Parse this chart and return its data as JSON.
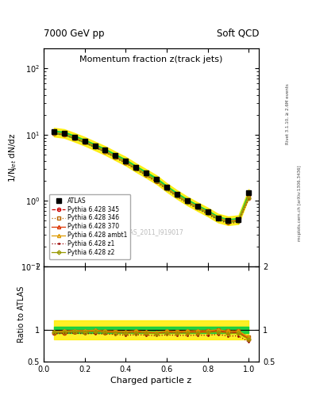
{
  "title_top_left": "7000 GeV pp",
  "title_top_right": "Soft QCD",
  "plot_title": "Momentum fraction z(track jets)",
  "ylabel_main": "1/N$_{jet}$ dN/dz",
  "ylabel_ratio": "Ratio to ATLAS",
  "xlabel": "Charged particle z",
  "right_label_top": "Rivet 3.1.10, ≥ 2.6M events",
  "right_label_bottom": "mcplots.cern.ch [arXiv:1306.3436]",
  "watermark": "ATLAS_2011_I919017",
  "ylim_main": [
    0.1,
    200
  ],
  "ylim_ratio": [
    0.5,
    2.0
  ],
  "xlim": [
    0.0,
    1.05
  ],
  "x_data": [
    0.05,
    0.1,
    0.15,
    0.2,
    0.25,
    0.3,
    0.35,
    0.4,
    0.45,
    0.5,
    0.55,
    0.6,
    0.65,
    0.7,
    0.75,
    0.8,
    0.85,
    0.9,
    0.95,
    1.0
  ],
  "atlas_y": [
    11.0,
    10.5,
    9.2,
    8.0,
    6.8,
    5.8,
    4.8,
    4.0,
    3.2,
    2.6,
    2.1,
    1.6,
    1.25,
    1.0,
    0.82,
    0.68,
    0.55,
    0.5,
    0.52,
    1.3
  ],
  "atlas_yerr": [
    0.3,
    0.25,
    0.2,
    0.18,
    0.15,
    0.12,
    0.1,
    0.09,
    0.08,
    0.07,
    0.06,
    0.05,
    0.04,
    0.04,
    0.03,
    0.03,
    0.03,
    0.03,
    0.03,
    0.08
  ],
  "py345_y": [
    10.4,
    10.0,
    8.9,
    7.7,
    6.6,
    5.6,
    4.6,
    3.8,
    3.1,
    2.5,
    2.0,
    1.55,
    1.2,
    0.97,
    0.8,
    0.66,
    0.54,
    0.48,
    0.5,
    1.1
  ],
  "py346_y": [
    10.6,
    10.2,
    9.0,
    7.8,
    6.7,
    5.65,
    4.65,
    3.85,
    3.1,
    2.5,
    2.0,
    1.56,
    1.21,
    0.97,
    0.8,
    0.67,
    0.55,
    0.49,
    0.51,
    1.15
  ],
  "py370_y": [
    10.5,
    10.1,
    8.95,
    7.75,
    6.65,
    5.6,
    4.62,
    3.82,
    3.08,
    2.48,
    1.99,
    1.54,
    1.2,
    0.96,
    0.79,
    0.66,
    0.54,
    0.48,
    0.5,
    1.12
  ],
  "pyambt1_y": [
    10.7,
    10.3,
    9.1,
    7.9,
    6.75,
    5.7,
    4.7,
    3.9,
    3.15,
    2.52,
    2.02,
    1.57,
    1.22,
    0.98,
    0.81,
    0.67,
    0.55,
    0.49,
    0.51,
    1.15
  ],
  "pyz1_y": [
    10.3,
    9.9,
    8.7,
    7.5,
    6.4,
    5.4,
    4.45,
    3.65,
    2.95,
    2.38,
    1.9,
    1.47,
    1.14,
    0.91,
    0.75,
    0.62,
    0.51,
    0.45,
    0.47,
    1.05
  ],
  "pyz2_y": [
    10.5,
    10.1,
    8.9,
    7.7,
    6.6,
    5.55,
    4.58,
    3.78,
    3.05,
    2.46,
    1.97,
    1.52,
    1.18,
    0.95,
    0.78,
    0.65,
    0.53,
    0.47,
    0.49,
    1.1
  ],
  "atlas_band_green": 0.05,
  "atlas_band_yellow": 0.15,
  "colors": {
    "atlas": "#000000",
    "py345": "#cc0000",
    "py346": "#bb6600",
    "py370": "#dd3300",
    "pyambt1": "#dd9900",
    "pyz1": "#990000",
    "pyz2": "#999900"
  },
  "band_green": "#00cc44",
  "band_yellow": "#ffee00"
}
